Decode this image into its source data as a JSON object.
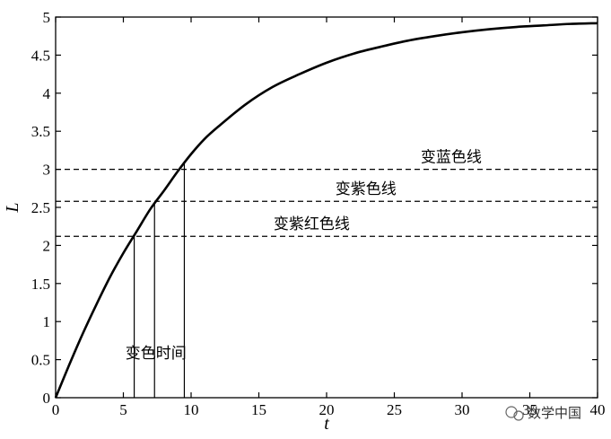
{
  "chart_data": {
    "type": "line",
    "xlabel": "t",
    "ylabel": "L",
    "xlim": [
      0,
      40
    ],
    "ylim": [
      0,
      5
    ],
    "xticks": [
      0,
      5,
      10,
      15,
      20,
      25,
      30,
      35,
      40
    ],
    "xtick_labels": [
      "0",
      "5",
      "10",
      "15",
      "20",
      "25",
      "30",
      "35",
      "40"
    ],
    "yticks": [
      0,
      0.5,
      1,
      1.5,
      2,
      2.5,
      3,
      3.5,
      4,
      4.5,
      5
    ],
    "ytick_labels": [
      "0",
      "0.5",
      "1",
      "1.5",
      "2",
      "2.5",
      "3",
      "3.5",
      "4",
      "4.5",
      "5"
    ],
    "grid": false,
    "series": [
      {
        "x": [
          0,
          1,
          2,
          3,
          4,
          5,
          6,
          7,
          8,
          9,
          10,
          11,
          12,
          14,
          16,
          18,
          20,
          22,
          24,
          26,
          28,
          30,
          32,
          34,
          36,
          38,
          40
        ],
        "y": [
          0,
          0.43,
          0.84,
          1.22,
          1.58,
          1.9,
          2.19,
          2.48,
          2.72,
          2.97,
          3.2,
          3.4,
          3.56,
          3.85,
          4.08,
          4.25,
          4.4,
          4.52,
          4.61,
          4.69,
          4.75,
          4.8,
          4.84,
          4.87,
          4.89,
          4.91,
          4.92
        ]
      }
    ],
    "reference_lines": [
      {
        "y": 3.0,
        "label": "变蓝色线",
        "label_x": 29.2
      },
      {
        "y": 2.58,
        "label": "变紫色线",
        "label_x": 22.9
      },
      {
        "y": 2.12,
        "label": "变紫红色线",
        "label_x": 18.9
      }
    ],
    "drop_lines_x": [
      5.8,
      7.3,
      9.5
    ],
    "annotations": [
      {
        "text": "变色时间",
        "x": 7.4,
        "y": 0.52
      }
    ]
  },
  "watermark": {
    "icon": "wechat-icon",
    "text": "数学中国"
  }
}
